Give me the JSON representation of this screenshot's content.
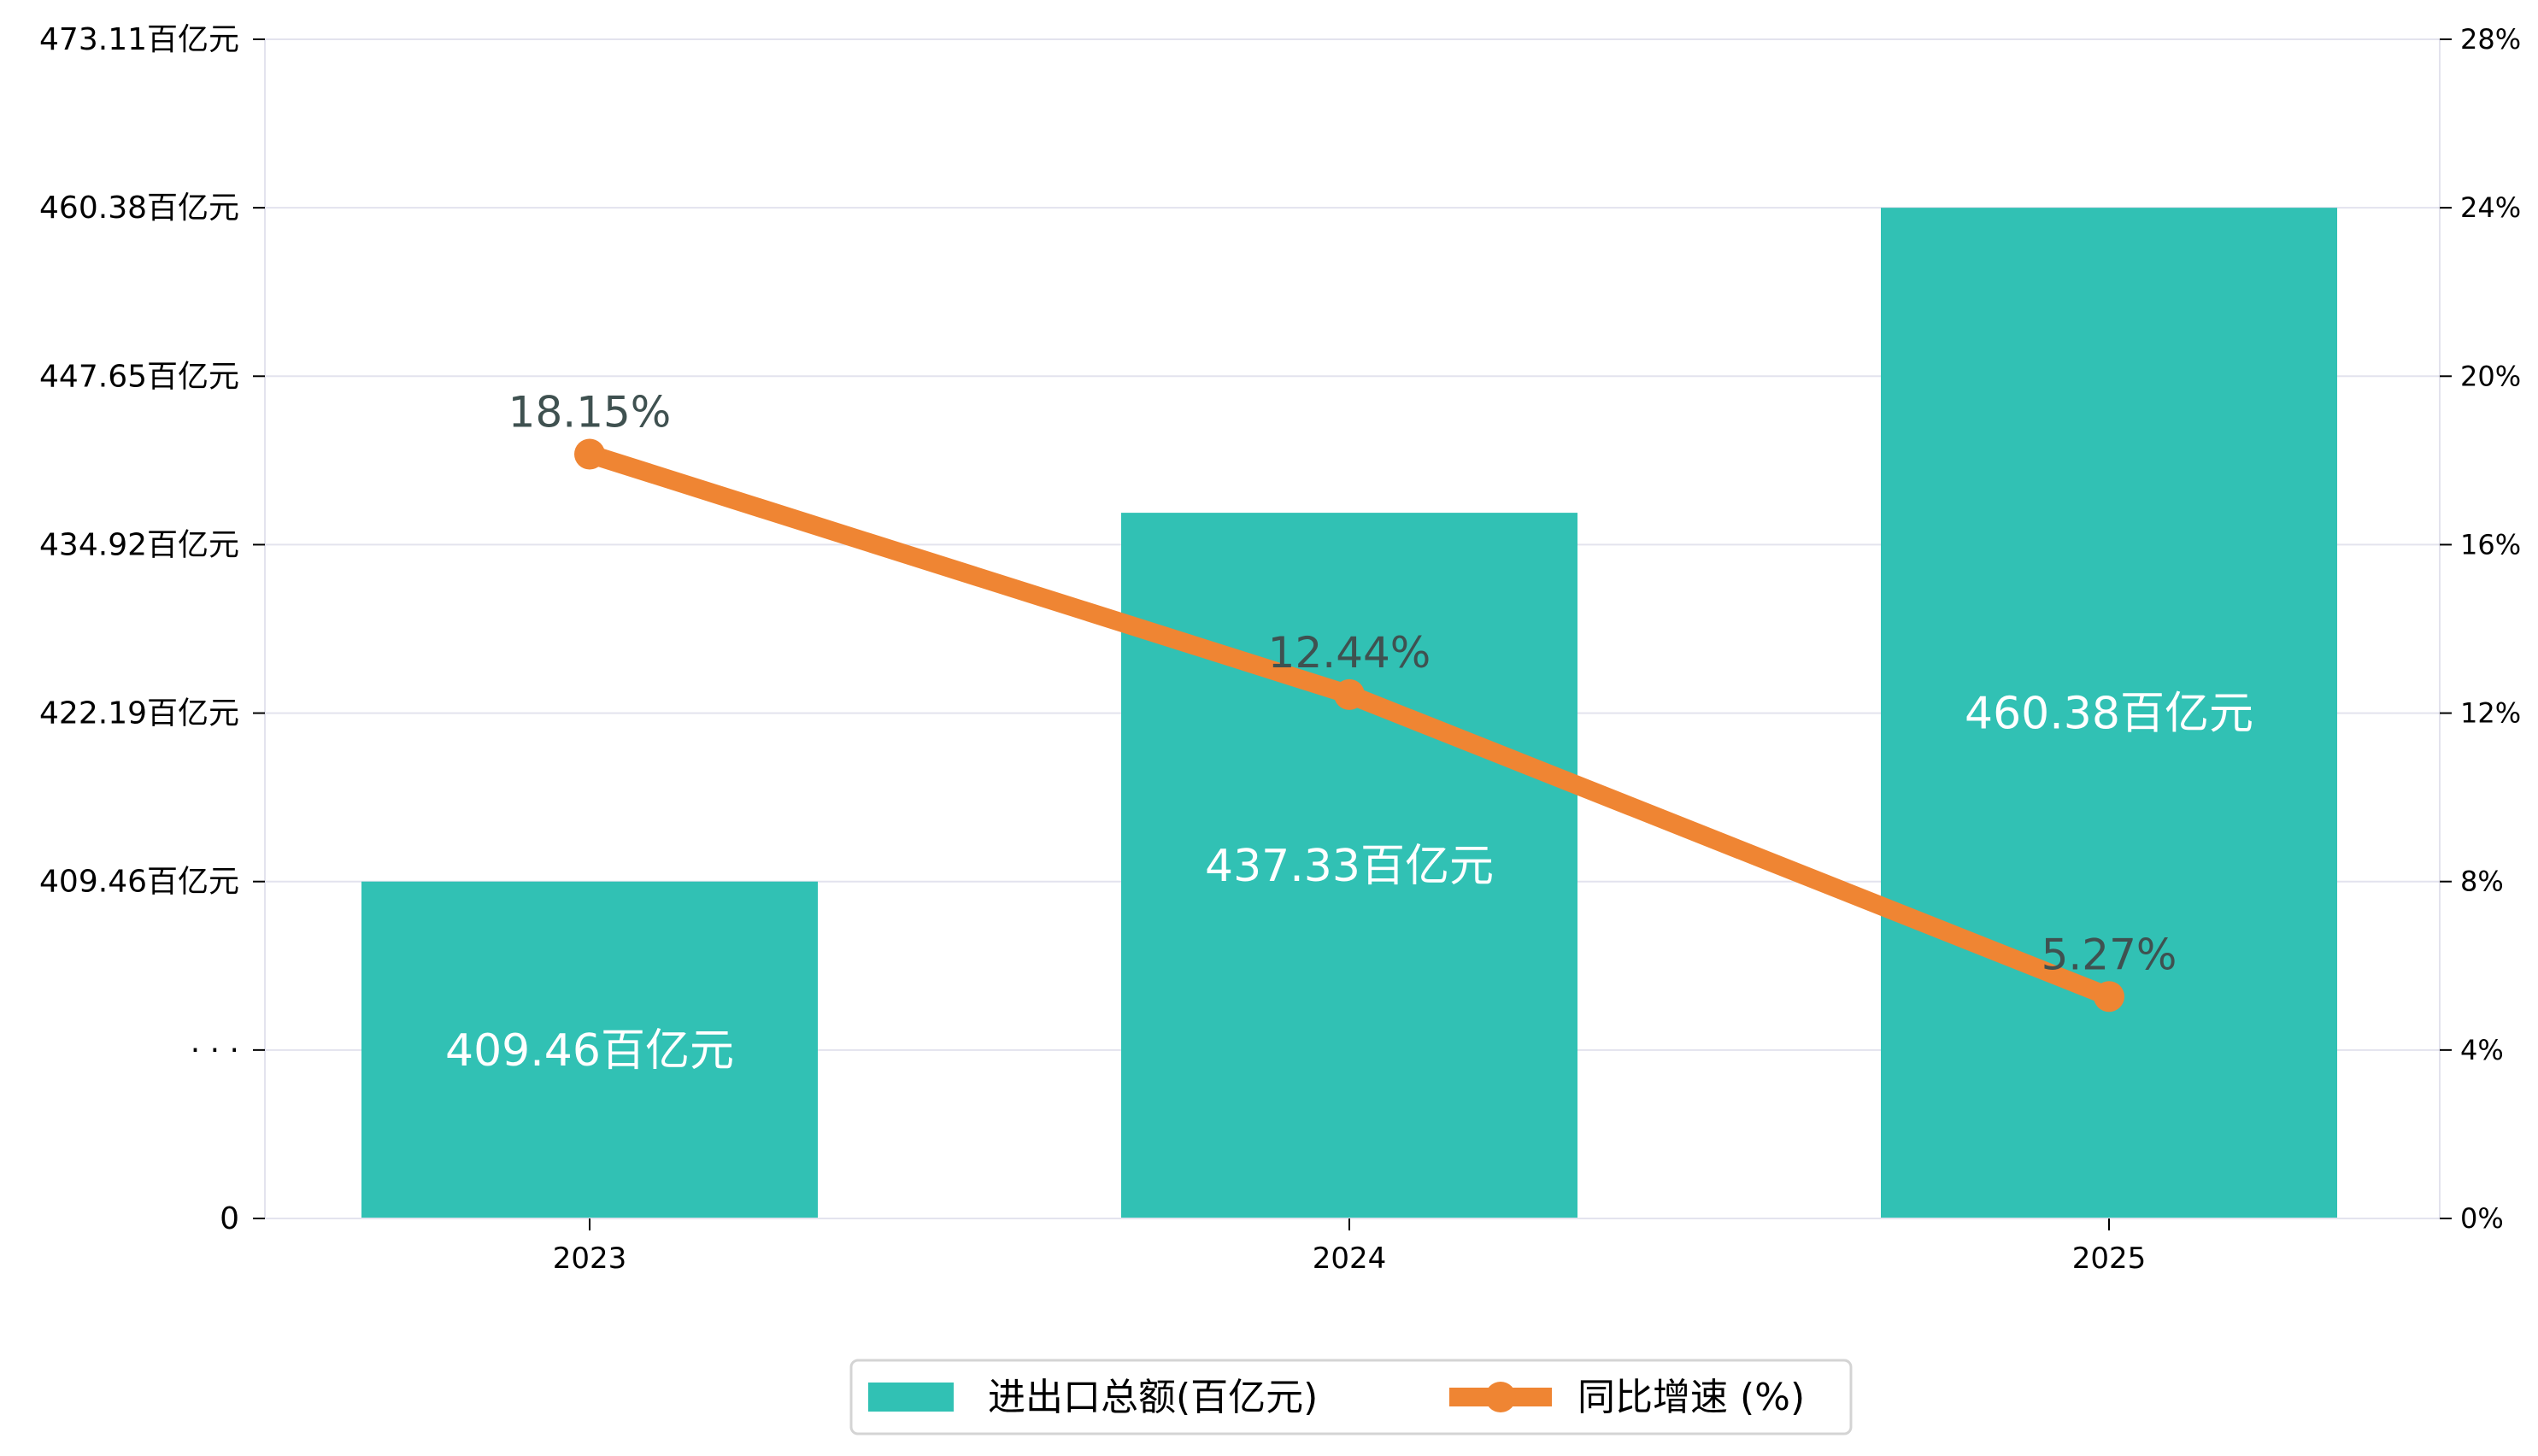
{
  "chart_data": {
    "type": "bar",
    "title": "",
    "xlabel": "",
    "ylabel": "",
    "categories": [
      "2023",
      "2024",
      "2025"
    ],
    "series": [
      {
        "name": "进出口总额(百亿元)",
        "type": "bar",
        "axis": "left",
        "values": [
          409.46,
          437.33,
          460.38
        ],
        "labels": [
          "409.46百亿元",
          "437.33百亿元",
          "460.38百亿元"
        ],
        "color": "#31c1b4"
      },
      {
        "name": "同比增速 (%)",
        "type": "line",
        "axis": "right",
        "values": [
          18.15,
          12.44,
          5.27
        ],
        "labels": [
          "18.15%",
          "12.44%",
          "5.27%"
        ],
        "color": "#ef8533"
      }
    ],
    "left_axis": {
      "ticks": [
        0,
        396.73,
        409.46,
        422.19,
        434.92,
        447.65,
        460.38,
        473.11
      ],
      "tick_labels": [
        "0",
        "· · ·",
        "409.46百亿元",
        "422.19百亿元",
        "434.92百亿元",
        "447.65百亿元",
        "460.38百亿元",
        "473.11百亿元"
      ],
      "broken_axis": true,
      "break_value": 396.73,
      "ylim": [
        0,
        473.11
      ]
    },
    "right_axis": {
      "ticks": [
        0,
        4,
        8,
        12,
        16,
        20,
        24,
        28
      ],
      "tick_labels": [
        "0%",
        "4%",
        "8%",
        "12%",
        "16%",
        "20%",
        "24%",
        "28%"
      ],
      "ylim": [
        0,
        28
      ]
    },
    "grid": true,
    "legend_position": "bottom-center"
  }
}
